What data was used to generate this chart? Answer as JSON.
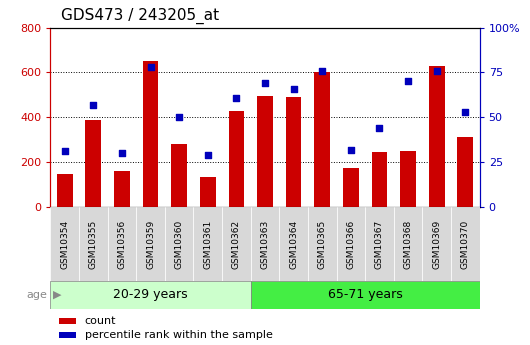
{
  "title": "GDS473 / 243205_at",
  "categories": [
    "GSM10354",
    "GSM10355",
    "GSM10356",
    "GSM10359",
    "GSM10360",
    "GSM10361",
    "GSM10362",
    "GSM10363",
    "GSM10364",
    "GSM10365",
    "GSM10366",
    "GSM10367",
    "GSM10368",
    "GSM10369",
    "GSM10370"
  ],
  "counts": [
    145,
    390,
    160,
    650,
    280,
    135,
    430,
    495,
    490,
    600,
    175,
    245,
    250,
    630,
    310
  ],
  "percentile_ranks": [
    31,
    57,
    30,
    78,
    50,
    29,
    61,
    69,
    66,
    76,
    32,
    44,
    70,
    76,
    53
  ],
  "group1_label": "20-29 years",
  "group2_label": "65-71 years",
  "n_group1": 7,
  "n_group2": 8,
  "bar_color": "#cc0000",
  "dot_color": "#0000bb",
  "group1_bg": "#ccffcc",
  "group2_bg": "#44ee44",
  "plot_bg": "#ffffff",
  "tick_bg": "#d8d8d8",
  "ylim_left": [
    0,
    800
  ],
  "ylim_right": [
    0,
    100
  ],
  "yticks_left": [
    0,
    200,
    400,
    600,
    800
  ],
  "yticks_right": [
    0,
    25,
    50,
    75,
    100
  ],
  "ytick_labels_left": [
    "0",
    "200",
    "400",
    "600",
    "800"
  ],
  "ytick_labels_right": [
    "0",
    "25",
    "50",
    "75",
    "100%"
  ],
  "legend_count_label": "count",
  "legend_pct_label": "percentile rank within the sample",
  "age_label": "age",
  "title_fontsize": 11,
  "axis_label_fontsize": 8,
  "group_label_fontsize": 9,
  "legend_fontsize": 8
}
